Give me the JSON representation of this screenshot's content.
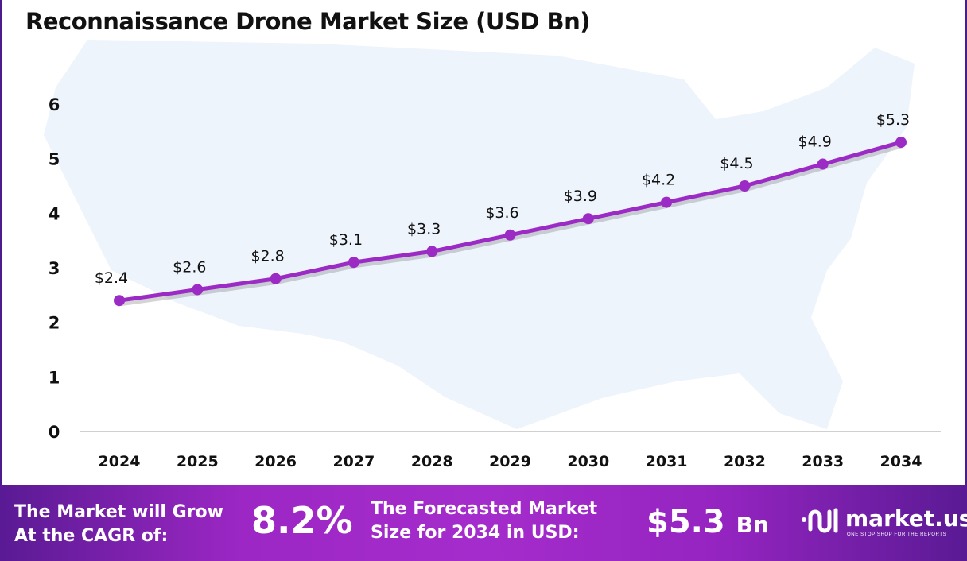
{
  "chart_data": {
    "type": "line",
    "title": "Reconnaissance Drone Market Size (USD Bn)",
    "categories": [
      "2024",
      "2025",
      "2026",
      "2027",
      "2028",
      "2029",
      "2030",
      "2031",
      "2032",
      "2033",
      "2034"
    ],
    "values": [
      2.4,
      2.6,
      2.8,
      3.1,
      3.3,
      3.6,
      3.9,
      4.2,
      4.5,
      4.9,
      5.3
    ],
    "data_labels": [
      "$2.4",
      "$2.6",
      "$2.8",
      "$3.1",
      "$3.3",
      "$3.6",
      "$3.9",
      "$4.2",
      "$4.5",
      "$4.9",
      "$5.3"
    ],
    "y_ticks": [
      "0",
      "1",
      "2",
      "3",
      "4",
      "5",
      "6"
    ],
    "ylim": [
      0,
      6
    ],
    "grid": false,
    "line_color": "#9b2bc4",
    "background": "US map silhouette, light blue"
  },
  "footer": {
    "cagr_label_line1": "The Market will Grow",
    "cagr_label_line2": "At the CAGR of:",
    "cagr_value": "8.2%",
    "forecast_label_line1": "The Forecasted Market",
    "forecast_label_line2": "Size for 2034 in USD:",
    "forecast_value": "$5.3",
    "forecast_unit": "Bn",
    "logo_name": "market.us",
    "logo_tagline": "ONE STOP SHOP FOR THE REPORTS"
  }
}
